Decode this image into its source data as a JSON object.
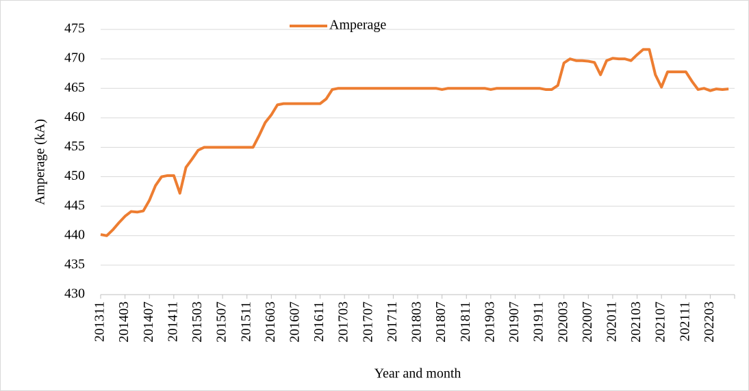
{
  "chart_data": {
    "type": "line",
    "xlabel": "Year and month",
    "ylabel": "Amperage  (kA)",
    "legend": "top",
    "grid": true,
    "categories": [
      "201311",
      null,
      null,
      null,
      "201403",
      null,
      null,
      null,
      "201407",
      null,
      null,
      null,
      "201411",
      null,
      null,
      null,
      "201503",
      null,
      null,
      null,
      "201507",
      null,
      null,
      null,
      "201511",
      null,
      null,
      null,
      "201603",
      null,
      null,
      null,
      "201607",
      null,
      null,
      null,
      "201611",
      null,
      null,
      null,
      "201703",
      null,
      null,
      null,
      "201707",
      null,
      null,
      null,
      "201711",
      null,
      null,
      null,
      "201803",
      null,
      null,
      null,
      "201807",
      null,
      null,
      null,
      "201811",
      null,
      null,
      null,
      "201903",
      null,
      null,
      null,
      "201907",
      null,
      null,
      null,
      "201911",
      null,
      null,
      null,
      "202003",
      null,
      null,
      null,
      "202007",
      null,
      null,
      null,
      "202011",
      null,
      null,
      null,
      "202103",
      null,
      null,
      null,
      "202107",
      null,
      null,
      null,
      "202111",
      null,
      null,
      null,
      "202203",
      null,
      null,
      null
    ],
    "series": [
      {
        "name": "Amperage",
        "color": "#ed7d31",
        "values": [
          440.2,
          440,
          441,
          442.2,
          443.3,
          444.1,
          444,
          444.2,
          446,
          448.5,
          450,
          450.2,
          450.2,
          447.2,
          451.6,
          453,
          454.5,
          455,
          455,
          455,
          455,
          455,
          455,
          455,
          455,
          455,
          457,
          459.2,
          460.5,
          462.2,
          462.4,
          462.4,
          462.4,
          462.4,
          462.4,
          462.4,
          462.4,
          463.2,
          464.8,
          465,
          465,
          465,
          465,
          465,
          465,
          465,
          465,
          465,
          465,
          465,
          465,
          465,
          465,
          465,
          465,
          465,
          464.8,
          465,
          465,
          465,
          465,
          465,
          465,
          465,
          464.8,
          465,
          465,
          465,
          465,
          465,
          465,
          465,
          465,
          464.8,
          464.8,
          465.5,
          469.3,
          470,
          469.7,
          469.7,
          469.6,
          469.4,
          467.3,
          469.7,
          470.1,
          470,
          470,
          469.7,
          470.7,
          471.6,
          471.6,
          467.3,
          465.2,
          467.8,
          467.8,
          467.8,
          467.8,
          466.2,
          464.8,
          465,
          464.6,
          464.9,
          464.8,
          464.9
        ]
      }
    ],
    "ylim": [
      430,
      475
    ],
    "yticks": [
      430,
      435,
      440,
      445,
      450,
      455,
      460,
      465,
      470,
      475
    ]
  }
}
